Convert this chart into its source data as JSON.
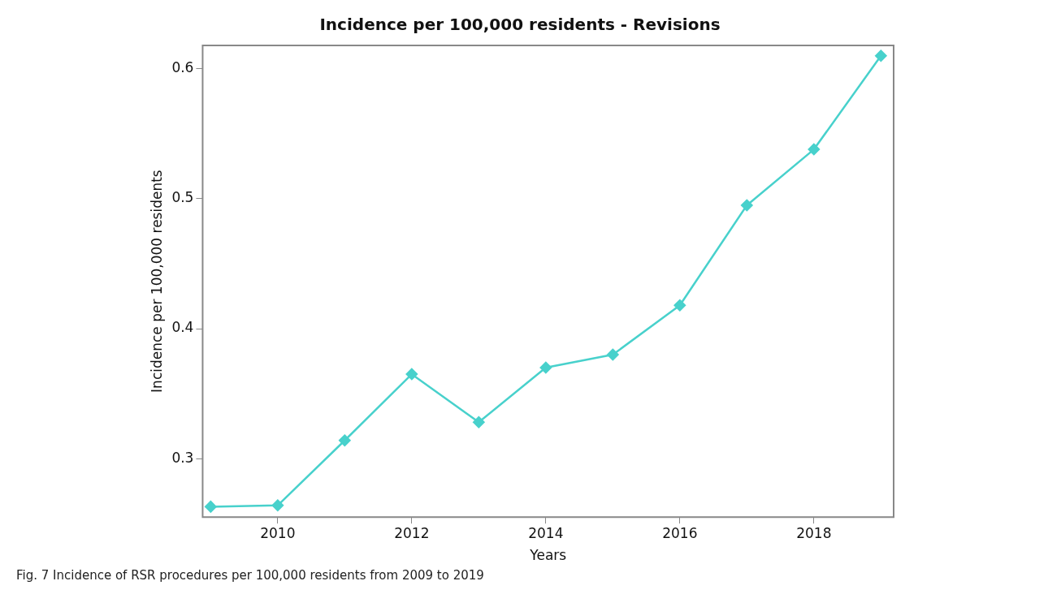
{
  "chart_data": {
    "type": "line",
    "title": "Incidence per 100,000 residents - Revisions",
    "xlabel": "Years",
    "ylabel": "Incidence per 100,000 residents",
    "x": [
      2009,
      2010,
      2011,
      2012,
      2013,
      2014,
      2015,
      2016,
      2017,
      2018,
      2019
    ],
    "series": [
      {
        "color": "#48d1cc",
        "values": [
          0.263,
          0.264,
          0.314,
          0.365,
          0.328,
          0.37,
          0.38,
          0.418,
          0.495,
          0.538,
          0.61
        ]
      }
    ],
    "xlim": [
      2008.88,
      2019.19
    ],
    "xticks": [
      2010,
      2012,
      2014,
      2016,
      2018
    ],
    "ylim": [
      0.255,
      0.618
    ],
    "yticks": [
      0.3,
      0.4,
      0.5,
      0.6
    ],
    "grid": false,
    "legend": false,
    "marker": "diamond",
    "line_style": "solid",
    "annotations": [
      "Fig. 7  Incidence of RSR procedures per 100,000 residents from 2009 to 2019"
    ]
  }
}
